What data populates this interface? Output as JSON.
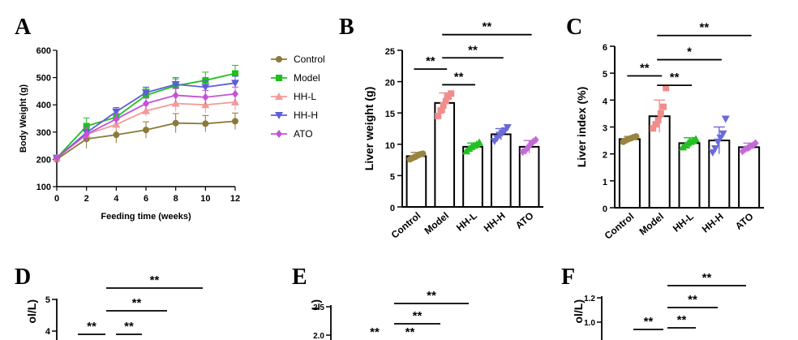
{
  "colors": {
    "Control": "#8b7a3a",
    "Model": "#1fbf1f",
    "HH-L": "#f29a9a",
    "HH-H": "#5b5fd6",
    "ATO": "#c452d6",
    "Model_dots": "#f08c8c",
    "Control_dots": "#9a8340",
    "HH-L_dots": "#22c022",
    "HH-H_dots": "#6a6ad8",
    "ATO_dots": "#c46ad8"
  },
  "panels": {
    "A": "A",
    "B": "B",
    "C": "C",
    "D": "D",
    "E": "E",
    "F": "F"
  },
  "chart_data": [
    {
      "id": "A",
      "type": "line",
      "xlabel": "Feeding time (weeks)",
      "ylabel": "Body Weight (g)",
      "x": [
        0,
        2,
        4,
        6,
        8,
        10,
        12
      ],
      "xticks": [
        0,
        2,
        4,
        6,
        8,
        10,
        12
      ],
      "yticks": [
        100,
        200,
        300,
        400,
        500,
        600
      ],
      "xlim": [
        0,
        12
      ],
      "ylim": [
        100,
        600
      ],
      "series": [
        {
          "name": "Control",
          "color": "#8b7a3a",
          "marker": "circle",
          "values": [
            200,
            275,
            290,
            308,
            333,
            331,
            340
          ],
          "errors": [
            8,
            35,
            30,
            30,
            35,
            30,
            30
          ]
        },
        {
          "name": "Model",
          "color": "#1fbf1f",
          "marker": "square",
          "values": [
            205,
            322,
            355,
            435,
            470,
            490,
            515
          ],
          "errors": [
            8,
            30,
            25,
            25,
            25,
            30,
            30
          ]
        },
        {
          "name": "HH-L",
          "color": "#f29a9a",
          "marker": "triangle-up",
          "values": [
            205,
            292,
            328,
            378,
            405,
            400,
            410
          ],
          "errors": [
            8,
            25,
            20,
            20,
            30,
            30,
            30
          ]
        },
        {
          "name": "HH-H",
          "color": "#5b5fd6",
          "marker": "triangle-down",
          "values": [
            205,
            298,
            375,
            445,
            475,
            465,
            480
          ],
          "errors": [
            8,
            20,
            15,
            20,
            25,
            25,
            25
          ]
        },
        {
          "name": "ATO",
          "color": "#c452d6",
          "marker": "diamond",
          "values": [
            205,
            292,
            348,
            405,
            435,
            428,
            440
          ],
          "errors": [
            8,
            25,
            20,
            20,
            25,
            25,
            25
          ]
        }
      ],
      "legend": [
        "Control",
        "Model",
        "HH-L",
        "HH-H",
        "ATO"
      ]
    },
    {
      "id": "B",
      "type": "bar",
      "ylabel": "Liver weight (g)",
      "categories": [
        "Control",
        "Model",
        "HH-L",
        "HH-H",
        "ATO"
      ],
      "values": [
        8.1,
        16.6,
        9.6,
        11.6,
        9.6
      ],
      "errors": [
        0.6,
        1.6,
        0.6,
        0.9,
        1.0
      ],
      "points": [
        [
          7.6,
          7.8,
          8.0,
          8.2,
          8.4,
          8.5
        ],
        [
          14.5,
          15.4,
          16.2,
          16.9,
          17.6,
          18.1
        ],
        [
          8.9,
          9.3,
          9.6,
          9.8,
          10.0,
          10.3
        ],
        [
          10.5,
          11.0,
          11.5,
          11.8,
          12.2,
          12.7
        ],
        [
          8.8,
          9.0,
          9.5,
          10.0,
          10.4,
          10.7
        ]
      ],
      "ylim": [
        0,
        25
      ],
      "yticks": [
        0,
        5,
        10,
        15,
        20,
        25
      ],
      "significance": [
        {
          "from": 0,
          "to": 1,
          "label": "**",
          "level": 22
        },
        {
          "from": 1,
          "to": 2,
          "label": "**",
          "level": 19.5
        },
        {
          "from": 1,
          "to": 3,
          "label": "**",
          "level": 23.8
        },
        {
          "from": 1,
          "to": 4,
          "label": "**",
          "level": 27.5
        }
      ]
    },
    {
      "id": "C",
      "type": "bar",
      "ylabel": "Liver index (%)",
      "categories": [
        "Control",
        "Model",
        "HH-L",
        "HH-H",
        "ATO"
      ],
      "values": [
        2.55,
        3.4,
        2.4,
        2.5,
        2.25
      ],
      "errors": [
        0.1,
        0.6,
        0.2,
        0.5,
        0.15
      ],
      "points": [
        [
          2.45,
          2.5,
          2.55,
          2.58,
          2.62,
          2.65
        ],
        [
          2.95,
          3.1,
          3.25,
          3.5,
          3.75,
          4.45
        ],
        [
          2.25,
          2.32,
          2.4,
          2.45,
          2.5,
          2.55
        ],
        [
          2.05,
          2.2,
          2.45,
          2.6,
          2.75,
          3.3
        ],
        [
          2.1,
          2.18,
          2.22,
          2.28,
          2.32,
          2.4
        ]
      ],
      "ylim": [
        0,
        6
      ],
      "yticks": [
        0,
        1,
        2,
        3,
        4,
        5,
        6
      ],
      "significance": [
        {
          "from": 0,
          "to": 1,
          "label": "**",
          "level": 4.9
        },
        {
          "from": 1,
          "to": 2,
          "label": "**",
          "level": 4.55
        },
        {
          "from": 1,
          "to": 3,
          "label": "*",
          "level": 5.5
        },
        {
          "from": 1,
          "to": 4,
          "label": "**",
          "level": 6.4
        }
      ]
    },
    {
      "id": "D",
      "type": "bar",
      "ylabel": "ol/L)",
      "yticks": [
        4,
        5
      ],
      "significance_labels": [
        "**",
        "**",
        "**",
        "**"
      ]
    },
    {
      "id": "E",
      "type": "bar",
      "ylabel": "L)",
      "yticks": [
        2.0,
        2.5
      ],
      "significance_labels": [
        "**",
        "**",
        "**",
        "**"
      ]
    },
    {
      "id": "F",
      "type": "bar",
      "ylabel": "ol/L)",
      "yticks": [
        1.0,
        1.2
      ],
      "significance_labels": [
        "**",
        "**",
        "**",
        "**"
      ]
    }
  ]
}
